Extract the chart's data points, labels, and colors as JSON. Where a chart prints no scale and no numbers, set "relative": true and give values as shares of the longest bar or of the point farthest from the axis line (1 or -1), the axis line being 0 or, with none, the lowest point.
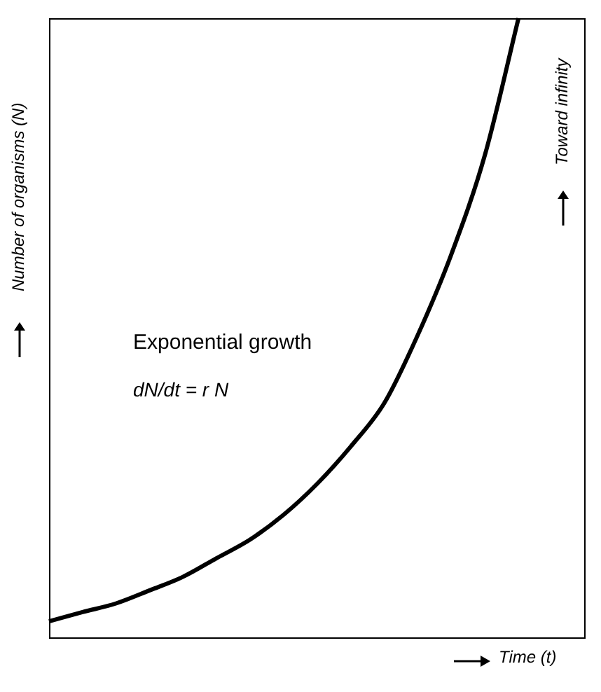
{
  "chart_data": {
    "type": "line",
    "relative": true,
    "xlabel": "Time (t)",
    "ylabel": "Number of organisms (N)",
    "annotations": [
      "Exponential growth",
      "dN/dt = r N",
      "Toward infinity"
    ],
    "categories": [
      null,
      null,
      null,
      null,
      null,
      null,
      null,
      null,
      null,
      null,
      null,
      null,
      null,
      null,
      null,
      null,
      null
    ],
    "series": [
      {
        "color": "#000000",
        "values": [
          0.028,
          0.043,
          0.057,
          0.078,
          0.1,
          0.13,
          0.16,
          0.2,
          0.25,
          0.31,
          0.38,
          0.49,
          0.62,
          0.78,
          1,
          null,
          null
        ]
      }
    ],
    "legend": false,
    "marker": "none",
    "line_style": "solid"
  }
}
